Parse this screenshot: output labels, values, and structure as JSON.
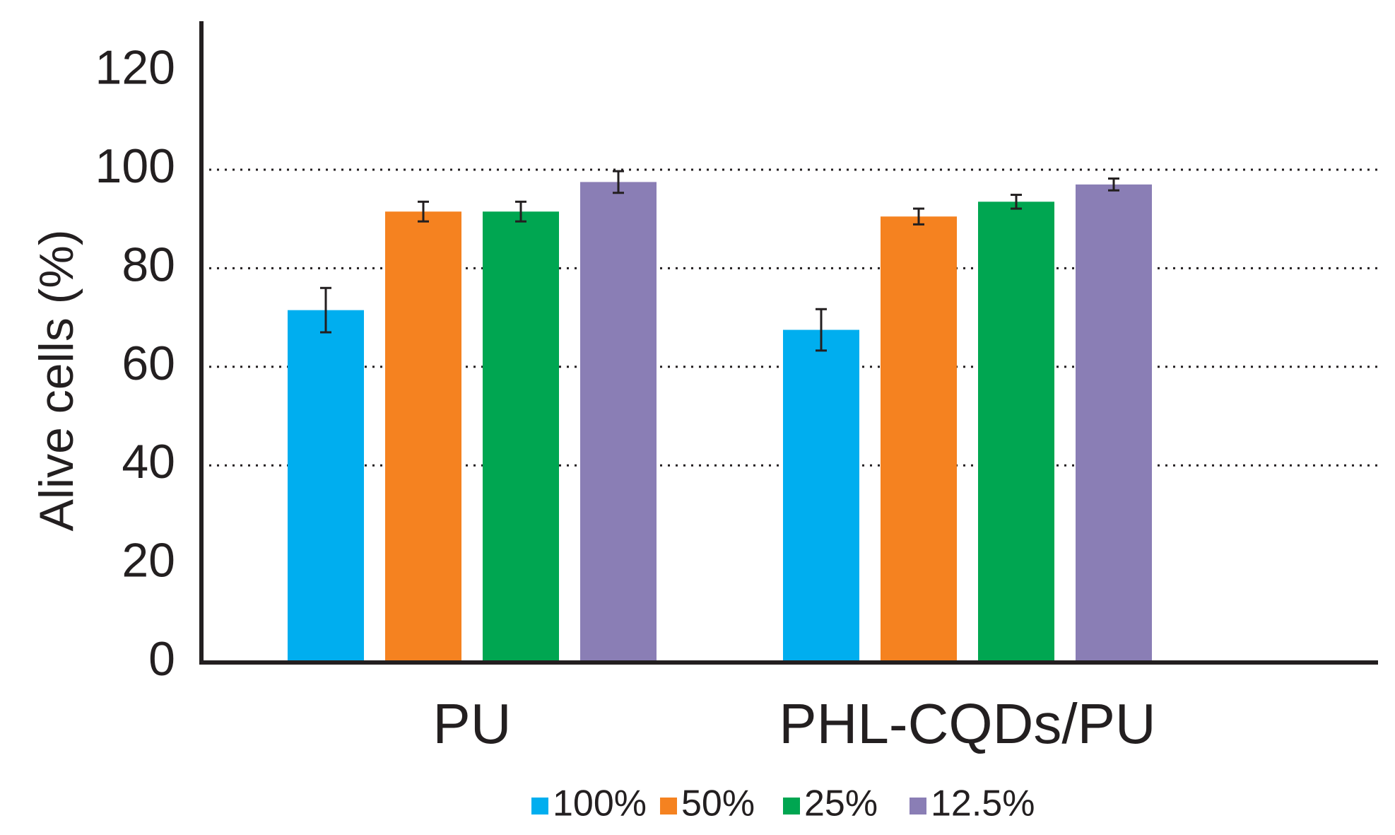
{
  "chart_data": {
    "type": "bar",
    "title": "",
    "xlabel": "",
    "ylabel": "Alive cells (%)",
    "ylim": [
      0,
      125
    ],
    "yticks": [
      "0",
      "20",
      "40",
      "60",
      "80",
      "100",
      "120"
    ],
    "gridlines": [
      40,
      60,
      80,
      100
    ],
    "grid_style": "dotted",
    "legend_position": "bottom-center",
    "categories": [
      "PU",
      "PHL-CQDs/PU"
    ],
    "series": [
      {
        "name": "100%",
        "color": "#00aeef",
        "values": [
          71.5,
          67.5
        ],
        "errors": [
          4.5,
          4.2
        ]
      },
      {
        "name": "50%",
        "color": "#f58220",
        "values": [
          91.5,
          90.5
        ],
        "errors": [
          2.0,
          1.6
        ]
      },
      {
        "name": "25%",
        "color": "#00a651",
        "values": [
          91.5,
          93.5
        ],
        "errors": [
          2.0,
          1.4
        ]
      },
      {
        "name": "12.5%",
        "color": "#8a7eb5",
        "values": [
          97.5,
          97.0
        ],
        "errors": [
          2.2,
          1.2
        ]
      }
    ]
  }
}
